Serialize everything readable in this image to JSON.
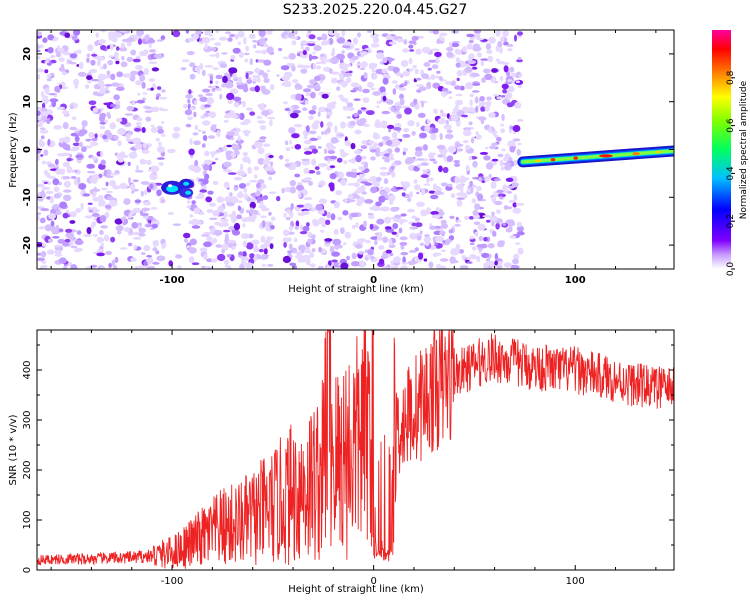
{
  "title": "S233.2025.220.04.45.G27",
  "colors": {
    "snr_line": "#ee2222",
    "noise_dot": "#cfb2ff",
    "noise_dot_dark": "#7f1cf0",
    "axis": "#000000"
  },
  "chart_data": [
    {
      "type": "heatmap",
      "panel": "spectrogram",
      "xlabel": "Height of straight line (km)",
      "ylabel": "Frequency (Hz)",
      "xlim": [
        -167,
        149
      ],
      "ylim": [
        -25,
        25
      ],
      "xticks": [
        -100,
        0,
        100
      ],
      "xtick_labels": [
        "-100",
        "0",
        "100"
      ],
      "yticks": [
        -20,
        -10,
        0,
        10,
        20
      ],
      "ytick_labels": [
        "-20",
        "-10",
        "0",
        "10",
        "20"
      ],
      "colorbar": {
        "label": "Normalized spectral amplitude",
        "range": [
          0,
          1
        ],
        "ticks": [
          0.0,
          0.2,
          0.4,
          0.6,
          0.8
        ],
        "tick_labels": [
          "0.0",
          "0.2",
          "0.4",
          "0.6",
          "0.8"
        ],
        "colormap": [
          "#ffffff",
          "#7f00ff",
          "#0000ff",
          "#00ffff",
          "#00ff00",
          "#ffff00",
          "#ff8000",
          "#ff0000",
          "#ff00a0"
        ]
      },
      "noise_region": {
        "x_start": -167,
        "x_end": 73,
        "amplitude": 0.1
      },
      "blank_gaps": [
        [
          -104,
          -92
        ],
        [
          -50,
          -44
        ]
      ],
      "features": [
        {
          "x": [
            -104,
            -88
          ],
          "y": [
            -11,
            -5
          ],
          "amplitude": 0.35
        },
        {
          "x": [
            74,
            149
          ],
          "y": [
            -2.5,
            -0.5
          ],
          "amplitude": 0.8,
          "description_track": "signal"
        }
      ]
    },
    {
      "type": "line",
      "panel": "snr",
      "xlabel": "Height of straight line (km)",
      "ylabel": "SNR (10 * v/v)",
      "xlim": [
        -167,
        149
      ],
      "ylim": [
        0,
        480
      ],
      "xticks": [
        -100,
        0,
        100
      ],
      "xtick_labels": [
        "-100",
        "0",
        "100"
      ],
      "yticks": [
        0,
        100,
        200,
        300,
        400
      ],
      "ytick_labels": [
        "0",
        "100",
        "200",
        "300",
        "400"
      ],
      "series": [
        {
          "x": [
            -167,
            -150,
            -140,
            -130,
            -120,
            -110,
            -100,
            -95,
            -90,
            -85,
            -80,
            -75,
            -70,
            -65,
            -60,
            -55,
            -50,
            -45,
            -40,
            -35,
            -30,
            -25,
            -22,
            -20,
            -15,
            -10,
            -5,
            -2,
            0,
            2,
            4,
            6,
            8,
            10,
            12,
            15,
            20,
            25,
            30,
            35,
            40,
            45,
            50,
            55,
            60,
            65,
            70,
            75,
            80,
            85,
            90,
            95,
            100,
            105,
            110,
            115,
            120,
            125,
            130,
            135,
            140,
            145,
            149
          ],
          "y": [
            20,
            22,
            22,
            24,
            25,
            28,
            35,
            45,
            55,
            65,
            75,
            85,
            90,
            95,
            105,
            115,
            125,
            140,
            155,
            165,
            175,
            200,
            440,
            210,
            230,
            250,
            270,
            300,
            310,
            40,
            30,
            25,
            30,
            250,
            280,
            300,
            320,
            340,
            360,
            375,
            390,
            400,
            410,
            420,
            425,
            420,
            415,
            410,
            405,
            405,
            400,
            400,
            400,
            395,
            390,
            385,
            380,
            375,
            370,
            368,
            365,
            365,
            362
          ]
        }
      ]
    }
  ]
}
